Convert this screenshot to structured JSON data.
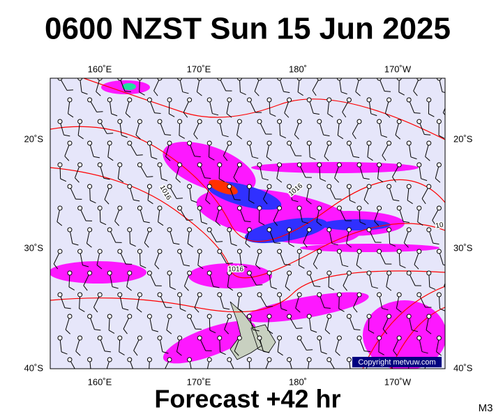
{
  "header": {
    "title": "0600 NZST Sun 15 Jun 2025"
  },
  "map": {
    "lon_labels": [
      "160˚E",
      "170˚E",
      "180˚",
      "170˚W"
    ],
    "lat_labels": [
      "20˚S",
      "30˚S",
      "40˚S"
    ],
    "contour_labels": [
      "1016",
      "1016",
      "1016",
      "10"
    ],
    "copyright": "Copyright metvuw.com"
  },
  "footer": {
    "forecast": "Forecast +42 hr",
    "model": "M3"
  }
}
